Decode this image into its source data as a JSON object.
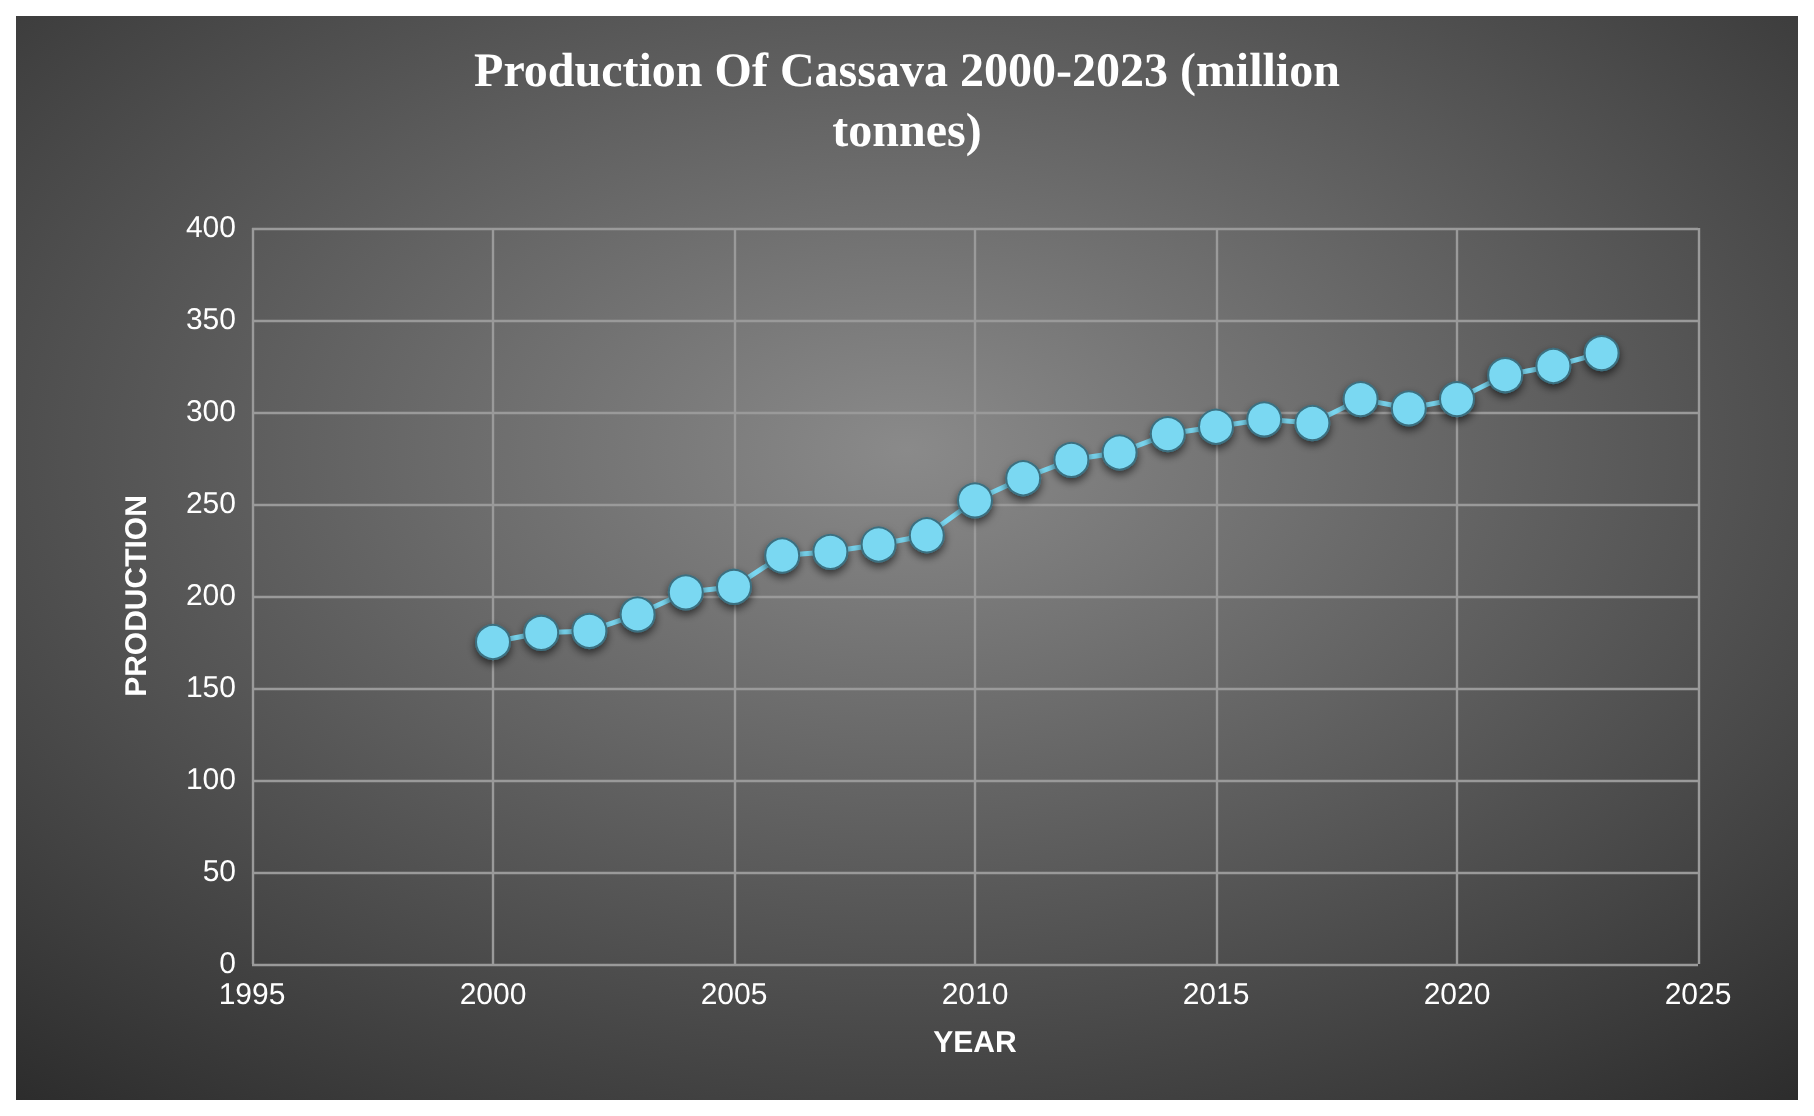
{
  "chart_data": {
    "type": "line",
    "title": "Production Of Cassava 2000-2023 (million\ntonnes)",
    "xlabel": "YEAR",
    "ylabel": "PRODUCTION",
    "x": [
      2000,
      2001,
      2002,
      2003,
      2004,
      2005,
      2006,
      2007,
      2008,
      2009,
      2010,
      2011,
      2012,
      2013,
      2014,
      2015,
      2016,
      2017,
      2018,
      2019,
      2020,
      2021,
      2022,
      2023
    ],
    "series": [
      {
        "color": "#7ad8f2",
        "values": [
          175,
          180,
          181,
          190,
          202,
          205,
          222,
          224,
          228,
          233,
          252,
          264,
          274,
          278,
          288,
          292,
          296,
          294,
          307,
          302,
          307,
          320,
          325,
          332
        ]
      }
    ],
    "xlim": [
      1995,
      2025
    ],
    "xticks": [
      1995,
      2000,
      2005,
      2010,
      2015,
      2020,
      2025
    ],
    "ylim": [
      0,
      400
    ],
    "yticks": [
      0,
      50,
      100,
      150,
      200,
      250,
      300,
      350,
      400
    ],
    "grid": true,
    "marker": "circle",
    "line_style": "solid"
  }
}
